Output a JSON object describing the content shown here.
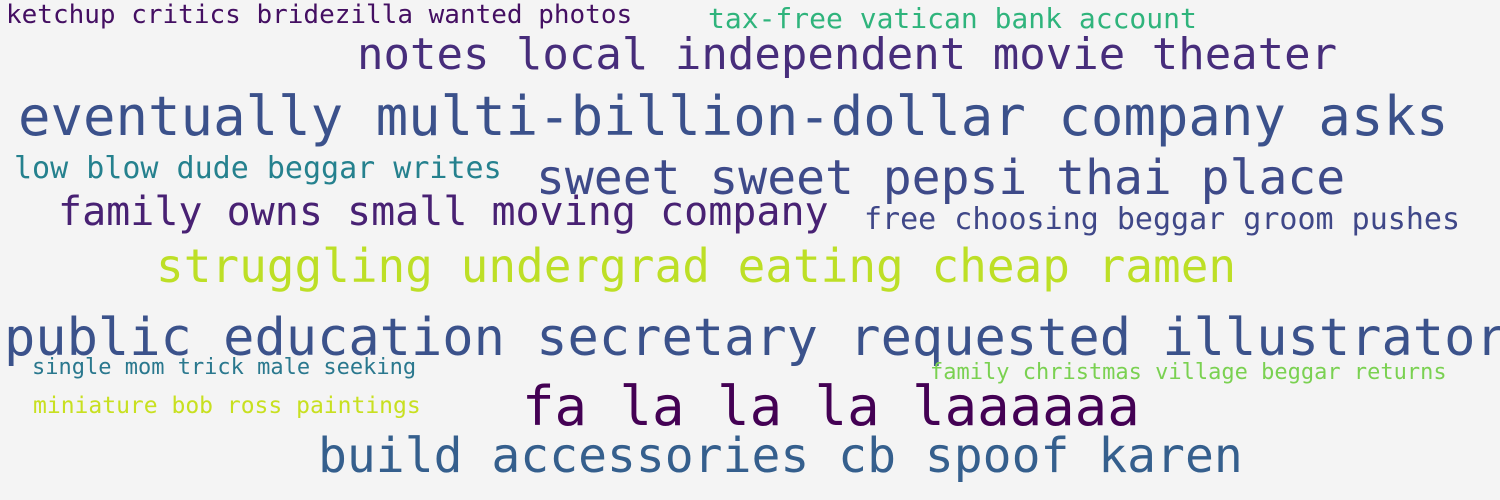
{
  "word_cloud": {
    "background_color": "#f4f4f4",
    "phrases": [
      {
        "text": "ketchup critics bridezilla wanted photos",
        "color": "#440f62"
      },
      {
        "text": "tax-free vatican bank account",
        "color": "#2fb47c"
      },
      {
        "text": "notes local independent movie theater",
        "color": "#472d7b"
      },
      {
        "text": "eventually multi-billion-dollar company asks",
        "color": "#3b518b"
      },
      {
        "text": "low blow dude beggar writes",
        "color": "#25818e"
      },
      {
        "text": "sweet sweet pepsi thai place",
        "color": "#3e4a89"
      },
      {
        "text": "family owns small moving company",
        "color": "#482173"
      },
      {
        "text": "free choosing beggar groom pushes",
        "color": "#3f4788"
      },
      {
        "text": "struggling undergrad eating cheap ramen",
        "color": "#bddf26"
      },
      {
        "text": "public education secretary requested illustrators",
        "color": "#3b528b"
      },
      {
        "text": "single mom trick male seeking",
        "color": "#2a788e"
      },
      {
        "text": "family christmas village beggar returns",
        "color": "#7ad151"
      },
      {
        "text": "fa la la la laaaaaa",
        "color": "#440154"
      },
      {
        "text": "miniature bob ross paintings",
        "color": "#c8e020"
      },
      {
        "text": "build accessories cb spoof karen",
        "color": "#355f8d"
      }
    ]
  }
}
